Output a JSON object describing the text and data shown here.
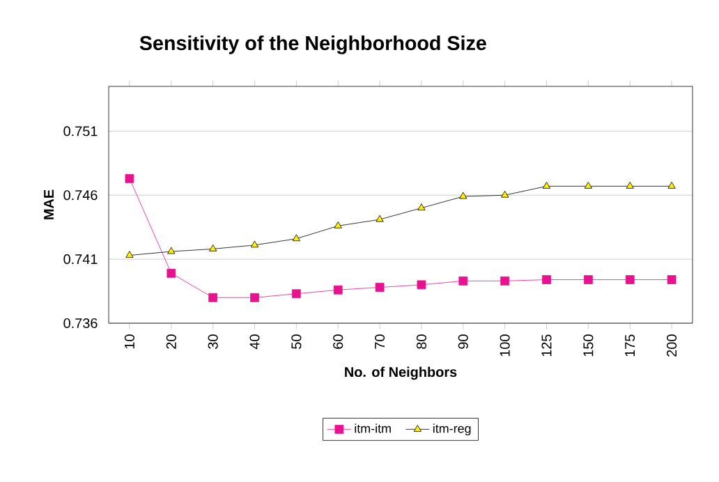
{
  "chart_data": {
    "type": "line",
    "title": "Sensitivity of the Neighborhood Size",
    "xlabel": "No. of Neighbors",
    "ylabel": "MAE",
    "categories": [
      "10",
      "20",
      "30",
      "40",
      "50",
      "60",
      "70",
      "80",
      "90",
      "100",
      "125",
      "150",
      "175",
      "200"
    ],
    "ylim": [
      0.736,
      0.7545
    ],
    "yticks": [
      0.736,
      0.741,
      0.746,
      0.751
    ],
    "grid": "y",
    "legend": "bottom",
    "series": [
      {
        "name": "itm-itm",
        "color": "#e8118f",
        "marker": "square",
        "values": [
          0.7473,
          0.7399,
          0.738,
          0.738,
          0.7383,
          0.7386,
          0.7388,
          0.739,
          0.7393,
          0.7393,
          0.7394,
          0.7394,
          0.7394,
          0.7394
        ]
      },
      {
        "name": "itm-reg",
        "color": "#000000",
        "marker": "triangle",
        "values": [
          0.7413,
          0.7416,
          0.7418,
          0.7421,
          0.7426,
          0.7436,
          0.7441,
          0.745,
          0.7459,
          0.746,
          0.7467,
          0.7467,
          0.7467,
          0.7467
        ]
      }
    ]
  }
}
